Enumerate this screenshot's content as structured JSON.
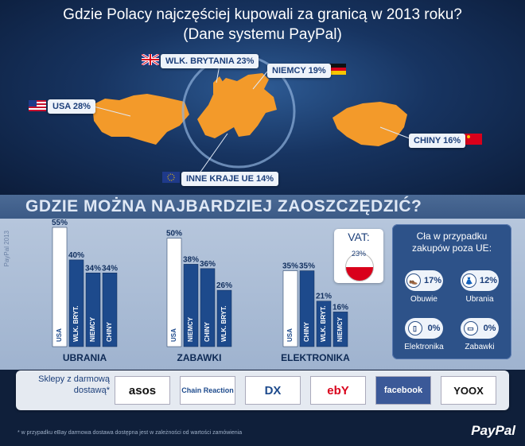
{
  "title": {
    "line1": "Gdzie Polacy najczęściej kupowali za granicą w 2013 roku?",
    "line2": "(Dane systemu PayPal)"
  },
  "map": {
    "labels": [
      {
        "id": "uk",
        "text": "WLK. BRYTANIA 23%"
      },
      {
        "id": "de",
        "text": "NIEMCY 19%"
      },
      {
        "id": "us",
        "text": "USA 28%"
      },
      {
        "id": "cn",
        "text": "CHINY 16%"
      },
      {
        "id": "eu",
        "text": "INNE KRAJE UE 14%"
      }
    ]
  },
  "savings_title": "GDZIE MOŻNA NAJBARDZIEJ ZAOSZCZĘDZIĆ?",
  "side_note": "PayPal 2013",
  "chart_data": [
    {
      "type": "bar",
      "group": "UBRANIA",
      "categories": [
        "USA",
        "WLK. BRYT.",
        "NIEMCY",
        "CHINY"
      ],
      "values": [
        55,
        40,
        34,
        34
      ],
      "labels": [
        "55%",
        "40%",
        "34%",
        "34%"
      ]
    },
    {
      "type": "bar",
      "group": "ZABAWKI",
      "categories": [
        "USA",
        "NIEMCY",
        "CHINY",
        "WLK. BRYT."
      ],
      "values": [
        50,
        38,
        36,
        26
      ],
      "labels": [
        "50%",
        "38%",
        "36%",
        "26%"
      ]
    },
    {
      "type": "bar",
      "group": "ELEKTRONIKA",
      "categories": [
        "USA",
        "CHINY",
        "WLK. BRYT.",
        "NIEMCY"
      ],
      "values": [
        35,
        35,
        21,
        16
      ],
      "labels": [
        "35%",
        "35%",
        "21%",
        "16%"
      ]
    }
  ],
  "vat": {
    "title": "VAT:",
    "value": "23%"
  },
  "customs": {
    "title_line1": "Cła w przypadku",
    "title_line2": "zakupów poza UE:",
    "items": [
      {
        "label": "Obuwie",
        "value": "17%",
        "icon": "shoe-icon"
      },
      {
        "label": "Ubrania",
        "value": "12%",
        "icon": "dress-icon"
      },
      {
        "label": "Elektronika",
        "value": "0%",
        "icon": "device-icon"
      },
      {
        "label": "Zabawki",
        "value": "0%",
        "icon": "toy-car-icon"
      }
    ]
  },
  "shops": {
    "title_line1": "Sklepy z darmową",
    "title_line2": "dostawą*",
    "logos": [
      "asos",
      "Chain Reaction",
      "DX",
      "ebY",
      "facebook",
      "YOOX"
    ]
  },
  "footer": {
    "note": "* w przypadku eBay darmowa dostawa dostępna jest w zależności od wartości zamówienia",
    "logo": "PayPal"
  },
  "colors": {
    "map_land": "#f39a2a",
    "bar_first": "#ffffff",
    "bar_other": "#1d4a8c",
    "label_bg": "#eef3fa"
  }
}
